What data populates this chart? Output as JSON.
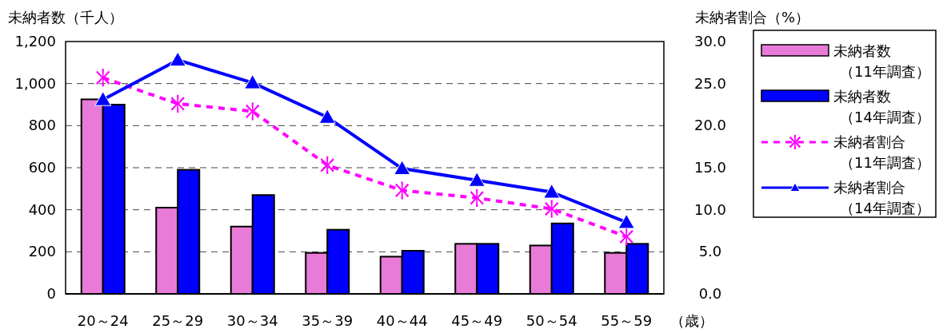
{
  "chart_data": {
    "type": "bar",
    "categories": [
      "20～24",
      "25～29",
      "30～34",
      "35～39",
      "40～44",
      "45～49",
      "50～54",
      "55～59"
    ],
    "xlabel": "（歳）",
    "ylabel": "未納者数（千人）",
    "y2label": "未納者割合（%）",
    "ylim": [
      0,
      1200
    ],
    "yticks": [
      0,
      200,
      400,
      600,
      800,
      {
        "value": 1000,
        "label": "1,000"
      },
      {
        "value": 1200,
        "label": "1,200"
      }
    ],
    "y2lim": [
      0,
      30
    ],
    "y2ticks": [
      {
        "value": 0,
        "label": "0.0"
      },
      {
        "value": 5,
        "label": "5.0"
      },
      {
        "value": 10,
        "label": "10.0"
      },
      {
        "value": 15,
        "label": "15.0"
      },
      {
        "value": 20,
        "label": "20.0"
      },
      {
        "value": 25,
        "label": "25.0"
      },
      {
        "value": 30,
        "label": "30.0"
      }
    ],
    "grid": "y",
    "legend": "right",
    "series": [
      {
        "name": "未納者数（11年調査）",
        "type": "bar",
        "color": "#e87ad8",
        "values": [
          925,
          410,
          320,
          195,
          177,
          238,
          230,
          195
        ]
      },
      {
        "name": "未納者数（14年調査）",
        "type": "bar",
        "color": "#0000ff",
        "values": [
          900,
          590,
          470,
          305,
          205,
          238,
          335,
          238
        ]
      },
      {
        "name": "未納者割合（11年調査）",
        "type": "line",
        "axis": "y2",
        "color": "#ff00ff",
        "marker": "star",
        "line_style": "dashed",
        "values": [
          25.7,
          22.6,
          21.7,
          15.3,
          12.3,
          11.4,
          10.1,
          6.8
        ]
      },
      {
        "name": "未納者割合（14年調査）",
        "type": "line",
        "axis": "y2",
        "color": "#0000ff",
        "marker": "triangle",
        "line_style": "solid",
        "values": [
          23.1,
          27.8,
          25.1,
          21.0,
          14.9,
          13.5,
          12.1,
          8.5
        ]
      }
    ]
  }
}
